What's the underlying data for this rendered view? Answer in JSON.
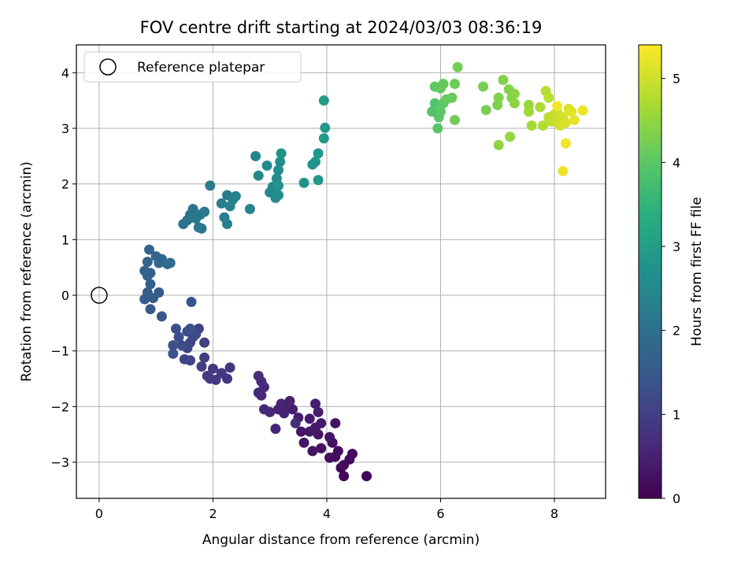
{
  "chart_data": {
    "type": "scatter",
    "title": "FOV centre drift starting at 2024/03/03 08:36:19",
    "xlabel": "Angular distance from reference (arcmin)",
    "ylabel": "Rotation from reference (arcmin)",
    "xlim": [
      -0.4,
      8.9
    ],
    "ylim": [
      -3.65,
      4.5
    ],
    "xticks": [
      0,
      2,
      4,
      6,
      8
    ],
    "yticks": [
      -3,
      -2,
      -1,
      0,
      1,
      2,
      3,
      4
    ],
    "xtick_labels": [
      "0",
      "2",
      "4",
      "6",
      "8"
    ],
    "ytick_labels": [
      "−3",
      "−2",
      "−1",
      "0",
      "1",
      "2",
      "3",
      "4"
    ],
    "grid": true,
    "colormap": "viridis",
    "colorbar": {
      "label": "Hours from first FF file",
      "range": [
        0,
        5.4
      ],
      "ticks": [
        0,
        1,
        2,
        3,
        4,
        5
      ],
      "tick_labels": [
        "0",
        "1",
        "2",
        "3",
        "4",
        "5"
      ]
    },
    "legend": {
      "placement": "top-left",
      "entries": [
        "Reference platepar"
      ]
    },
    "reference_point": {
      "x": 0,
      "y": 0
    },
    "points": [
      {
        "x": 4.7,
        "y": -3.25,
        "h": 0.05
      },
      {
        "x": 4.3,
        "y": -3.25,
        "h": 0.08
      },
      {
        "x": 4.25,
        "y": -3.1,
        "h": 0.1
      },
      {
        "x": 4.45,
        "y": -2.85,
        "h": 0.12
      },
      {
        "x": 4.15,
        "y": -2.9,
        "h": 0.14
      },
      {
        "x": 4.4,
        "y": -2.95,
        "h": 0.15
      },
      {
        "x": 4.3,
        "y": -3.05,
        "h": 0.17
      },
      {
        "x": 4.2,
        "y": -2.8,
        "h": 0.18
      },
      {
        "x": 4.05,
        "y": -2.92,
        "h": 0.2
      },
      {
        "x": 4.1,
        "y": -2.65,
        "h": 0.22
      },
      {
        "x": 3.9,
        "y": -2.75,
        "h": 0.24
      },
      {
        "x": 4.15,
        "y": -2.3,
        "h": 0.25
      },
      {
        "x": 4.05,
        "y": -2.55,
        "h": 0.27
      },
      {
        "x": 3.85,
        "y": -2.5,
        "h": 0.29
      },
      {
        "x": 3.75,
        "y": -2.8,
        "h": 0.3
      },
      {
        "x": 3.6,
        "y": -2.65,
        "h": 0.32
      },
      {
        "x": 3.55,
        "y": -2.45,
        "h": 0.34
      },
      {
        "x": 3.7,
        "y": -2.45,
        "h": 0.35
      },
      {
        "x": 3.8,
        "y": -2.38,
        "h": 0.37
      },
      {
        "x": 3.9,
        "y": -2.3,
        "h": 0.39
      },
      {
        "x": 3.7,
        "y": -2.22,
        "h": 0.4
      },
      {
        "x": 3.85,
        "y": -2.1,
        "h": 0.42
      },
      {
        "x": 3.8,
        "y": -1.95,
        "h": 0.44
      },
      {
        "x": 3.5,
        "y": -2.2,
        "h": 0.45
      },
      {
        "x": 3.4,
        "y": -2.05,
        "h": 0.47
      },
      {
        "x": 3.3,
        "y": -1.97,
        "h": 0.49
      },
      {
        "x": 3.35,
        "y": -1.9,
        "h": 0.5
      },
      {
        "x": 3.25,
        "y": -2.12,
        "h": 0.52
      },
      {
        "x": 3.15,
        "y": -2.05,
        "h": 0.54
      },
      {
        "x": 3.2,
        "y": -1.95,
        "h": 0.55
      },
      {
        "x": 3.1,
        "y": -2.4,
        "h": 0.57
      },
      {
        "x": 3.0,
        "y": -2.1,
        "h": 0.59
      },
      {
        "x": 2.9,
        "y": -2.05,
        "h": 0.6
      },
      {
        "x": 2.85,
        "y": -1.8,
        "h": 0.62
      },
      {
        "x": 2.8,
        "y": -1.75,
        "h": 0.64
      },
      {
        "x": 2.9,
        "y": -1.65,
        "h": 0.65
      },
      {
        "x": 2.85,
        "y": -1.55,
        "h": 0.67
      },
      {
        "x": 2.8,
        "y": -1.45,
        "h": 0.69
      },
      {
        "x": 3.45,
        "y": -2.3,
        "h": 0.7
      },
      {
        "x": 2.3,
        "y": -1.3,
        "h": 0.8
      },
      {
        "x": 2.25,
        "y": -1.5,
        "h": 0.82
      },
      {
        "x": 2.15,
        "y": -1.4,
        "h": 0.85
      },
      {
        "x": 2.05,
        "y": -1.52,
        "h": 0.87
      },
      {
        "x": 1.95,
        "y": -1.5,
        "h": 0.9
      },
      {
        "x": 2.0,
        "y": -1.32,
        "h": 0.92
      },
      {
        "x": 1.9,
        "y": -1.45,
        "h": 0.95
      },
      {
        "x": 1.85,
        "y": -1.12,
        "h": 0.97
      },
      {
        "x": 1.8,
        "y": -1.28,
        "h": 1.0
      },
      {
        "x": 1.85,
        "y": -0.85,
        "h": 1.02
      },
      {
        "x": 1.75,
        "y": -0.6,
        "h": 1.05
      },
      {
        "x": 1.6,
        "y": -1.17,
        "h": 1.07
      },
      {
        "x": 1.5,
        "y": -1.15,
        "h": 1.1
      },
      {
        "x": 1.55,
        "y": -0.95,
        "h": 1.12
      },
      {
        "x": 1.6,
        "y": -0.85,
        "h": 1.15
      },
      {
        "x": 1.65,
        "y": -0.75,
        "h": 1.17
      },
      {
        "x": 1.55,
        "y": -0.65,
        "h": 1.2
      },
      {
        "x": 1.7,
        "y": -0.7,
        "h": 1.22
      },
      {
        "x": 1.45,
        "y": -0.9,
        "h": 1.25
      },
      {
        "x": 1.4,
        "y": -0.75,
        "h": 1.27
      },
      {
        "x": 1.35,
        "y": -0.6,
        "h": 1.3
      },
      {
        "x": 1.3,
        "y": -0.9,
        "h": 1.32
      },
      {
        "x": 1.3,
        "y": -1.05,
        "h": 1.35
      },
      {
        "x": 1.6,
        "y": -0.6,
        "h": 1.37
      },
      {
        "x": 1.62,
        "y": -0.12,
        "h": 1.4
      },
      {
        "x": 1.1,
        "y": -0.38,
        "h": 1.45
      },
      {
        "x": 0.9,
        "y": -0.25,
        "h": 1.5
      },
      {
        "x": 1.05,
        "y": 0.05,
        "h": 1.52
      },
      {
        "x": 0.95,
        "y": -0.05,
        "h": 1.55
      },
      {
        "x": 0.8,
        "y": -0.07,
        "h": 1.57
      },
      {
        "x": 0.85,
        "y": 0.05,
        "h": 1.6
      },
      {
        "x": 0.9,
        "y": 0.2,
        "h": 1.62
      },
      {
        "x": 0.85,
        "y": 0.35,
        "h": 1.65
      },
      {
        "x": 0.9,
        "y": 0.4,
        "h": 1.67
      },
      {
        "x": 0.8,
        "y": 0.44,
        "h": 1.7
      },
      {
        "x": 0.85,
        "y": 0.6,
        "h": 1.72
      },
      {
        "x": 0.88,
        "y": 0.82,
        "h": 1.75
      },
      {
        "x": 1.0,
        "y": 0.7,
        "h": 1.77
      },
      {
        "x": 1.1,
        "y": 0.65,
        "h": 1.8
      },
      {
        "x": 1.05,
        "y": 0.58,
        "h": 1.82
      },
      {
        "x": 1.2,
        "y": 0.56,
        "h": 1.85
      },
      {
        "x": 1.25,
        "y": 0.58,
        "h": 1.87
      },
      {
        "x": 1.48,
        "y": 1.28,
        "h": 2.0
      },
      {
        "x": 1.55,
        "y": 1.35,
        "h": 2.02
      },
      {
        "x": 1.6,
        "y": 1.45,
        "h": 2.05
      },
      {
        "x": 1.65,
        "y": 1.55,
        "h": 2.07
      },
      {
        "x": 1.75,
        "y": 1.22,
        "h": 2.1
      },
      {
        "x": 1.8,
        "y": 1.2,
        "h": 2.12
      },
      {
        "x": 1.78,
        "y": 1.45,
        "h": 2.15
      },
      {
        "x": 1.85,
        "y": 1.5,
        "h": 2.17
      },
      {
        "x": 1.7,
        "y": 1.38,
        "h": 2.2
      },
      {
        "x": 1.95,
        "y": 1.97,
        "h": 2.22
      },
      {
        "x": 2.15,
        "y": 1.65,
        "h": 2.25
      },
      {
        "x": 2.25,
        "y": 1.8,
        "h": 2.27
      },
      {
        "x": 2.2,
        "y": 1.4,
        "h": 2.3
      },
      {
        "x": 2.25,
        "y": 1.28,
        "h": 2.32
      },
      {
        "x": 2.3,
        "y": 1.6,
        "h": 2.35
      },
      {
        "x": 2.35,
        "y": 1.72,
        "h": 2.37
      },
      {
        "x": 2.4,
        "y": 1.78,
        "h": 2.4
      },
      {
        "x": 2.65,
        "y": 1.55,
        "h": 2.42
      },
      {
        "x": 2.75,
        "y": 2.5,
        "h": 2.45
      },
      {
        "x": 2.8,
        "y": 2.15,
        "h": 2.47
      },
      {
        "x": 2.95,
        "y": 2.33,
        "h": 2.5
      },
      {
        "x": 3.0,
        "y": 1.85,
        "h": 2.52
      },
      {
        "x": 3.05,
        "y": 1.95,
        "h": 2.55
      },
      {
        "x": 3.1,
        "y": 1.75,
        "h": 2.57
      },
      {
        "x": 3.15,
        "y": 1.8,
        "h": 2.6
      },
      {
        "x": 3.12,
        "y": 2.1,
        "h": 2.62
      },
      {
        "x": 3.15,
        "y": 2.25,
        "h": 2.65
      },
      {
        "x": 3.18,
        "y": 2.4,
        "h": 2.67
      },
      {
        "x": 3.2,
        "y": 2.55,
        "h": 2.7
      },
      {
        "x": 3.15,
        "y": 1.97,
        "h": 2.72
      },
      {
        "x": 3.6,
        "y": 2.02,
        "h": 2.75
      },
      {
        "x": 3.75,
        "y": 2.35,
        "h": 2.77
      },
      {
        "x": 3.8,
        "y": 2.4,
        "h": 2.8
      },
      {
        "x": 3.85,
        "y": 2.55,
        "h": 2.82
      },
      {
        "x": 3.85,
        "y": 2.07,
        "h": 2.85
      },
      {
        "x": 3.95,
        "y": 2.82,
        "h": 2.87
      },
      {
        "x": 3.97,
        "y": 3.01,
        "h": 2.9
      },
      {
        "x": 3.95,
        "y": 3.5,
        "h": 2.92
      },
      {
        "x": 5.85,
        "y": 3.3,
        "h": 3.9
      },
      {
        "x": 5.9,
        "y": 3.45,
        "h": 3.92
      },
      {
        "x": 5.95,
        "y": 3.0,
        "h": 3.95
      },
      {
        "x": 5.97,
        "y": 3.2,
        "h": 3.97
      },
      {
        "x": 6.0,
        "y": 3.3,
        "h": 4.0
      },
      {
        "x": 6.05,
        "y": 3.45,
        "h": 4.02
      },
      {
        "x": 5.9,
        "y": 3.75,
        "h": 4.05
      },
      {
        "x": 6.0,
        "y": 3.72,
        "h": 4.07
      },
      {
        "x": 6.05,
        "y": 3.8,
        "h": 4.1
      },
      {
        "x": 6.1,
        "y": 3.52,
        "h": 4.12
      },
      {
        "x": 6.2,
        "y": 3.55,
        "h": 4.15
      },
      {
        "x": 6.25,
        "y": 3.8,
        "h": 4.17
      },
      {
        "x": 6.25,
        "y": 3.15,
        "h": 4.2
      },
      {
        "x": 6.3,
        "y": 4.1,
        "h": 4.22
      },
      {
        "x": 6.75,
        "y": 3.75,
        "h": 4.25
      },
      {
        "x": 6.8,
        "y": 3.33,
        "h": 4.27
      },
      {
        "x": 7.0,
        "y": 3.42,
        "h": 4.3
      },
      {
        "x": 7.02,
        "y": 3.55,
        "h": 4.32
      },
      {
        "x": 7.1,
        "y": 3.87,
        "h": 4.35
      },
      {
        "x": 7.2,
        "y": 3.7,
        "h": 4.37
      },
      {
        "x": 7.25,
        "y": 3.55,
        "h": 4.4
      },
      {
        "x": 7.3,
        "y": 3.62,
        "h": 4.42
      },
      {
        "x": 7.3,
        "y": 3.45,
        "h": 4.45
      },
      {
        "x": 7.02,
        "y": 2.7,
        "h": 4.47
      },
      {
        "x": 7.22,
        "y": 2.85,
        "h": 4.5
      },
      {
        "x": 7.55,
        "y": 3.42,
        "h": 4.55
      },
      {
        "x": 7.55,
        "y": 3.3,
        "h": 4.6
      },
      {
        "x": 7.6,
        "y": 3.05,
        "h": 4.65
      },
      {
        "x": 7.75,
        "y": 3.38,
        "h": 4.7
      },
      {
        "x": 7.8,
        "y": 3.05,
        "h": 4.75
      },
      {
        "x": 7.85,
        "y": 3.67,
        "h": 4.8
      },
      {
        "x": 7.9,
        "y": 3.55,
        "h": 4.83
      },
      {
        "x": 7.9,
        "y": 3.2,
        "h": 4.86
      },
      {
        "x": 7.95,
        "y": 3.12,
        "h": 4.9
      },
      {
        "x": 8.0,
        "y": 3.25,
        "h": 4.93
      },
      {
        "x": 8.05,
        "y": 3.3,
        "h": 4.96
      },
      {
        "x": 8.1,
        "y": 3.12,
        "h": 5.0
      },
      {
        "x": 8.1,
        "y": 3.05,
        "h": 5.03
      },
      {
        "x": 8.15,
        "y": 3.2,
        "h": 5.06
      },
      {
        "x": 8.2,
        "y": 3.1,
        "h": 5.1
      },
      {
        "x": 8.25,
        "y": 3.35,
        "h": 5.13
      },
      {
        "x": 8.3,
        "y": 3.3,
        "h": 5.16
      },
      {
        "x": 8.35,
        "y": 3.15,
        "h": 5.2
      },
      {
        "x": 8.5,
        "y": 3.32,
        "h": 5.25
      },
      {
        "x": 8.15,
        "y": 2.23,
        "h": 5.28
      },
      {
        "x": 8.2,
        "y": 2.73,
        "h": 5.3
      },
      {
        "x": 8.05,
        "y": 3.4,
        "h": 5.33
      }
    ]
  }
}
